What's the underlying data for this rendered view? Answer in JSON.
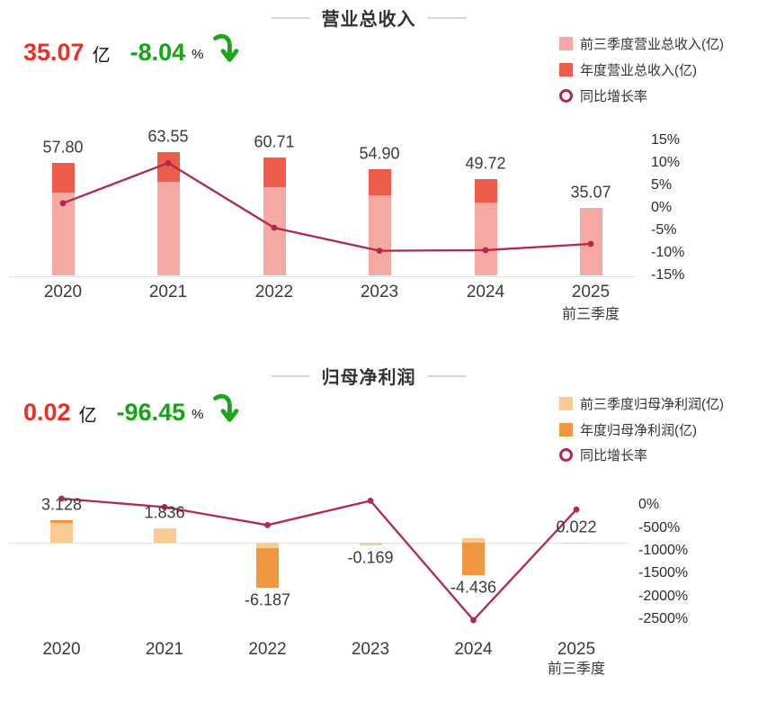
{
  "chart_data": [
    {
      "type": "bar+line",
      "title": "营业总收入",
      "headline": {
        "value": "35.07",
        "unit": "亿",
        "change": "-8.04",
        "percent": "%",
        "direction": "down"
      },
      "legend": [
        {
          "label": "前三季度营业总收入(亿)",
          "swatch": "q3"
        },
        {
          "label": "年度营业总收入(亿)",
          "swatch": "annual"
        },
        {
          "label": "同比增长率",
          "swatch": "line-circle"
        }
      ],
      "categories": [
        "2020",
        "2021",
        "2022",
        "2023",
        "2024",
        "2025"
      ],
      "x_sub_labels": [
        null,
        null,
        null,
        null,
        null,
        "前三季度"
      ],
      "series": [
        {
          "name": "前三季度营业总收入(亿)",
          "role": "q3",
          "estimated": true,
          "values": [
            42.8,
            48.2,
            45.7,
            41.4,
            37.8,
            35.07
          ]
        },
        {
          "name": "年度营业总收入(亿)",
          "role": "annual",
          "estimated": false,
          "values": [
            57.8,
            63.55,
            60.71,
            54.9,
            49.72,
            null
          ]
        }
      ],
      "bar_labels": [
        "57.80",
        "63.55",
        "60.71",
        "54.90",
        "49.72",
        "35.07"
      ],
      "bar_label_side": [
        "above",
        "above",
        "above",
        "above",
        "above",
        "above"
      ],
      "line": {
        "name": "同比增长率",
        "unit": "%",
        "values_pct": [
          1.0,
          9.95,
          -4.47,
          -9.57,
          -9.43,
          -8.04
        ]
      },
      "y2_axis": {
        "ticks": [
          "15%",
          "10%",
          "5%",
          "0%",
          "-5%",
          "-10%",
          "-15%"
        ],
        "tick_values": [
          15,
          10,
          5,
          0,
          -5,
          -10,
          -15
        ]
      },
      "colors": {
        "q3": "#F6A8A3",
        "annual": "#EE5D4B",
        "line": "#B1294E"
      }
    },
    {
      "type": "bar+line",
      "title": "归母净利润",
      "headline": {
        "value": "0.02",
        "unit": "亿",
        "change": "-96.45",
        "percent": "%",
        "direction": "down"
      },
      "legend": [
        {
          "label": "前三季度归母净利润(亿)",
          "swatch": "q3"
        },
        {
          "label": "年度归母净利润(亿)",
          "swatch": "annual"
        },
        {
          "label": "同比增长率",
          "swatch": "line-circle"
        }
      ],
      "categories": [
        "2020",
        "2021",
        "2022",
        "2023",
        "2024",
        "2025"
      ],
      "x_sub_labels": [
        null,
        null,
        null,
        null,
        null,
        "前三季度"
      ],
      "series": [
        {
          "name": "前三季度归母净利润(亿)",
          "role": "q3",
          "estimated": true,
          "values": [
            2.72,
            1.94,
            -0.69,
            -0.42,
            0.6,
            0.022
          ]
        },
        {
          "name": "年度归母净利润(亿)",
          "role": "annual",
          "estimated": false,
          "values": [
            3.128,
            1.836,
            -6.187,
            -0.169,
            -4.436,
            null
          ]
        }
      ],
      "bar_labels": [
        "3.128",
        "1.836",
        "-6.187",
        "-0.169",
        "-4.436",
        "0.022"
      ],
      "bar_label_side": [
        "above",
        "above",
        "below",
        "below",
        "below",
        "above"
      ],
      "line": {
        "name": "同比增长率",
        "unit": "%",
        "values_pct": [
          144,
          -41.3,
          -437.0,
          97.3,
          -2524.9,
          -96.45
        ]
      },
      "y2_axis": {
        "ticks": [
          "0%",
          "-500%",
          "-1000%",
          "-1500%",
          "-2000%",
          "-2500%"
        ],
        "tick_values": [
          0,
          -500,
          -1000,
          -1500,
          -2000,
          -2500
        ]
      },
      "colors": {
        "q3": "#F8CB94",
        "annual": "#F0973F",
        "line": "#B1294E"
      }
    }
  ],
  "icons": {
    "down_arrow": "curved-down-arrow",
    "arrow_color": "#1BA51B"
  }
}
